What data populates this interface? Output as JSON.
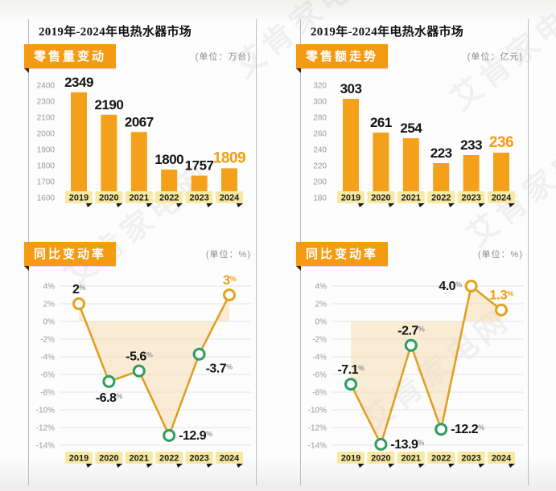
{
  "page": {
    "watermark": "艾肯家电网"
  },
  "colors": {
    "bar": "#f5a01b",
    "accent": "#f49c12",
    "line": "#e09c1e",
    "area": "#f6ddb2",
    "negative_point": "#2d9e5f",
    "positive_point": "#e8a11d",
    "tag_bg": "#f8e9a2",
    "grid": "#e2e2e2",
    "tick": "#999999",
    "label": "#141414",
    "suffix": "#999999",
    "badge_bg": "#f49b13",
    "badge_fold": "#30270f"
  },
  "columns": [
    {
      "title": "2019年-2024年电热水器市场",
      "top": {
        "badge": "零售量变动",
        "unit": "(单位：万台)"
      },
      "bottom": {
        "badge": "同比变动率",
        "unit": "(单位：%)"
      }
    },
    {
      "title": "2019年-2024年电热水器市场",
      "top": {
        "badge": "零售额走势",
        "unit": "(单位：亿元)"
      },
      "bottom": {
        "badge": "同比变动率",
        "unit": "(单位：%)"
      }
    }
  ],
  "chart_data": [
    {
      "type": "bar",
      "title": "零售量变动",
      "ylabel": "万台",
      "categories": [
        "2019",
        "2020",
        "2021",
        "2022",
        "2023",
        "2024"
      ],
      "values": [
        2349,
        2190,
        2067,
        1800,
        1757,
        1809
      ],
      "value_labels": [
        "2349",
        "2190",
        "2067",
        "1800",
        "1757",
        "1809"
      ],
      "highlight_index": 5,
      "ylim": [
        1600,
        2400
      ],
      "yticks": [
        "2400",
        "2300",
        "2100",
        "2000",
        "1900",
        "1800",
        "1700",
        "1600"
      ],
      "grid": false,
      "legend": false
    },
    {
      "type": "bar",
      "title": "零售额走势",
      "ylabel": "亿元",
      "categories": [
        "2019",
        "2020",
        "2021",
        "2022",
        "2023",
        "2024"
      ],
      "values": [
        303,
        261,
        254,
        223,
        233,
        236
      ],
      "value_labels": [
        "303",
        "261",
        "254",
        "223",
        "233",
        "236"
      ],
      "highlight_index": 5,
      "ylim": [
        180,
        320
      ],
      "yticks": [
        "320",
        "300",
        "280",
        "260",
        "240",
        "220",
        "200",
        "180"
      ],
      "grid": false,
      "legend": false
    },
    {
      "type": "line",
      "title": "同比变动率（零售量）",
      "ylabel": "%",
      "categories": [
        "2019",
        "2020",
        "2021",
        "2022",
        "2023",
        "2024"
      ],
      "values": [
        2,
        -6.8,
        -5.6,
        -12.9,
        -3.7,
        3
      ],
      "value_labels": [
        "2",
        "-6.8",
        "-5.6",
        "-12.9",
        "-3.7",
        "3"
      ],
      "label_suffix": "%",
      "label_pos": [
        "above",
        "below",
        "above",
        "right",
        "below-right",
        "above"
      ],
      "highlight_index": 5,
      "ylim": [
        -14,
        4
      ],
      "yticks": [
        "4%",
        "2%",
        "0%",
        "-2%",
        "-4%",
        "-6%",
        "-8%",
        "-10%",
        "-12%",
        "-14%"
      ],
      "zero_tick": "0%",
      "grid": true,
      "legend": false
    },
    {
      "type": "line",
      "title": "同比变动率（零售额）",
      "ylabel": "%",
      "categories": [
        "2019",
        "2020",
        "2021",
        "2022",
        "2023",
        "2024"
      ],
      "values": [
        -7.1,
        -13.9,
        -2.7,
        -12.2,
        4.0,
        1.3
      ],
      "value_labels": [
        "-7.1",
        "-13.9",
        "-2.7",
        "-12.2",
        "4.0",
        "1.3"
      ],
      "label_suffix": "%",
      "label_pos": [
        "above",
        "right",
        "above",
        "right",
        "left",
        "above"
      ],
      "highlight_index": 5,
      "ylim": [
        -14,
        4
      ],
      "yticks": [
        "4%",
        "2%",
        "0%",
        "-2%",
        "-4%",
        "-6%",
        "-8%",
        "-10%",
        "-12%",
        "-14%"
      ],
      "zero_tick": "0%",
      "grid": true,
      "legend": false
    }
  ]
}
